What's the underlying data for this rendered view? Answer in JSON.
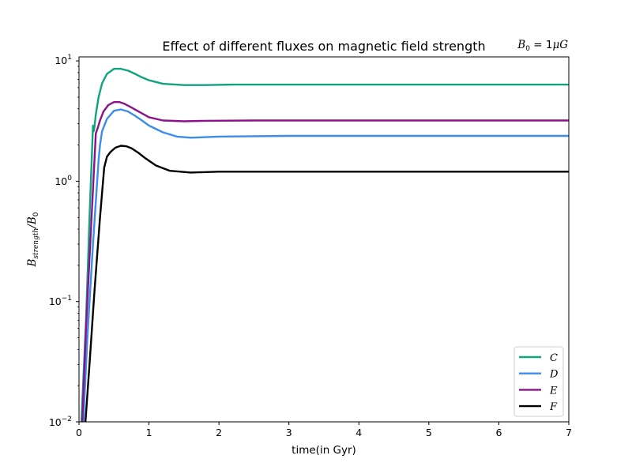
{
  "chart_data": {
    "type": "line",
    "title": "Effect of different fluxes on magnetic field strength",
    "annotation": "B0 = 1μG",
    "xlabel": "time(in Gyr)",
    "ylabel": "B_strength/B_0",
    "xlim": [
      0,
      7
    ],
    "ylim": [
      0.01,
      10.8
    ],
    "yscale": "log",
    "xticks": [
      0,
      1,
      2,
      3,
      4,
      5,
      6,
      7
    ],
    "xtick_labels": [
      "0",
      "1",
      "2",
      "3",
      "4",
      "5",
      "6",
      "7"
    ],
    "ytick_labels": [
      "10^-2",
      "10^-1",
      "10^0",
      "10^1"
    ],
    "legend_position": "lower-right",
    "grid": false,
    "series": [
      {
        "name": "C",
        "color": "#10a37f",
        "x": [
          0.03,
          0.1,
          0.15,
          0.2,
          0.21,
          0.22,
          0.24,
          0.28,
          0.33,
          0.4,
          0.5,
          0.6,
          0.7,
          0.8,
          0.9,
          1.0,
          1.2,
          1.5,
          1.8,
          2.2,
          3.0,
          4.0,
          5.0,
          6.0,
          7.0
        ],
        "y": [
          0.009,
          0.07,
          0.5,
          2.9,
          2.6,
          2.8,
          3.6,
          5.0,
          6.5,
          7.8,
          8.6,
          8.6,
          8.3,
          7.8,
          7.3,
          6.9,
          6.45,
          6.3,
          6.3,
          6.35,
          6.35,
          6.35,
          6.35,
          6.35,
          6.35
        ]
      },
      {
        "name": "D",
        "color": "#3b8ced",
        "x": [
          0.05,
          0.12,
          0.2,
          0.28,
          0.3,
          0.33,
          0.4,
          0.5,
          0.6,
          0.7,
          0.8,
          0.9,
          1.0,
          1.2,
          1.4,
          1.6,
          2.0,
          3.0,
          4.0,
          5.0,
          6.0,
          7.0
        ],
        "y": [
          0.007,
          0.05,
          0.3,
          1.5,
          2.0,
          2.6,
          3.3,
          3.85,
          3.95,
          3.8,
          3.5,
          3.2,
          2.9,
          2.55,
          2.35,
          2.3,
          2.35,
          2.38,
          2.38,
          2.38,
          2.38,
          2.38
        ]
      },
      {
        "name": "E",
        "color": "#8b128b",
        "x": [
          0.04,
          0.1,
          0.18,
          0.24,
          0.27,
          0.3,
          0.35,
          0.42,
          0.5,
          0.58,
          0.65,
          0.75,
          0.85,
          1.0,
          1.2,
          1.5,
          1.8,
          2.5,
          3.0,
          4.0,
          5.0,
          6.0,
          7.0
        ],
        "y": [
          0.008,
          0.06,
          0.5,
          2.5,
          2.8,
          3.2,
          3.8,
          4.3,
          4.55,
          4.55,
          4.4,
          4.1,
          3.8,
          3.4,
          3.2,
          3.15,
          3.18,
          3.2,
          3.2,
          3.2,
          3.2,
          3.2,
          3.2
        ]
      },
      {
        "name": "F",
        "color": "#000000",
        "x": [
          0.08,
          0.15,
          0.22,
          0.3,
          0.36,
          0.4,
          0.45,
          0.52,
          0.6,
          0.68,
          0.75,
          0.85,
          0.95,
          1.1,
          1.3,
          1.6,
          2.0,
          3.0,
          4.0,
          5.0,
          6.0,
          7.0
        ],
        "y": [
          0.008,
          0.03,
          0.12,
          0.5,
          1.3,
          1.6,
          1.75,
          1.9,
          1.97,
          1.95,
          1.88,
          1.72,
          1.55,
          1.35,
          1.22,
          1.18,
          1.2,
          1.2,
          1.2,
          1.2,
          1.2,
          1.2
        ]
      }
    ]
  }
}
